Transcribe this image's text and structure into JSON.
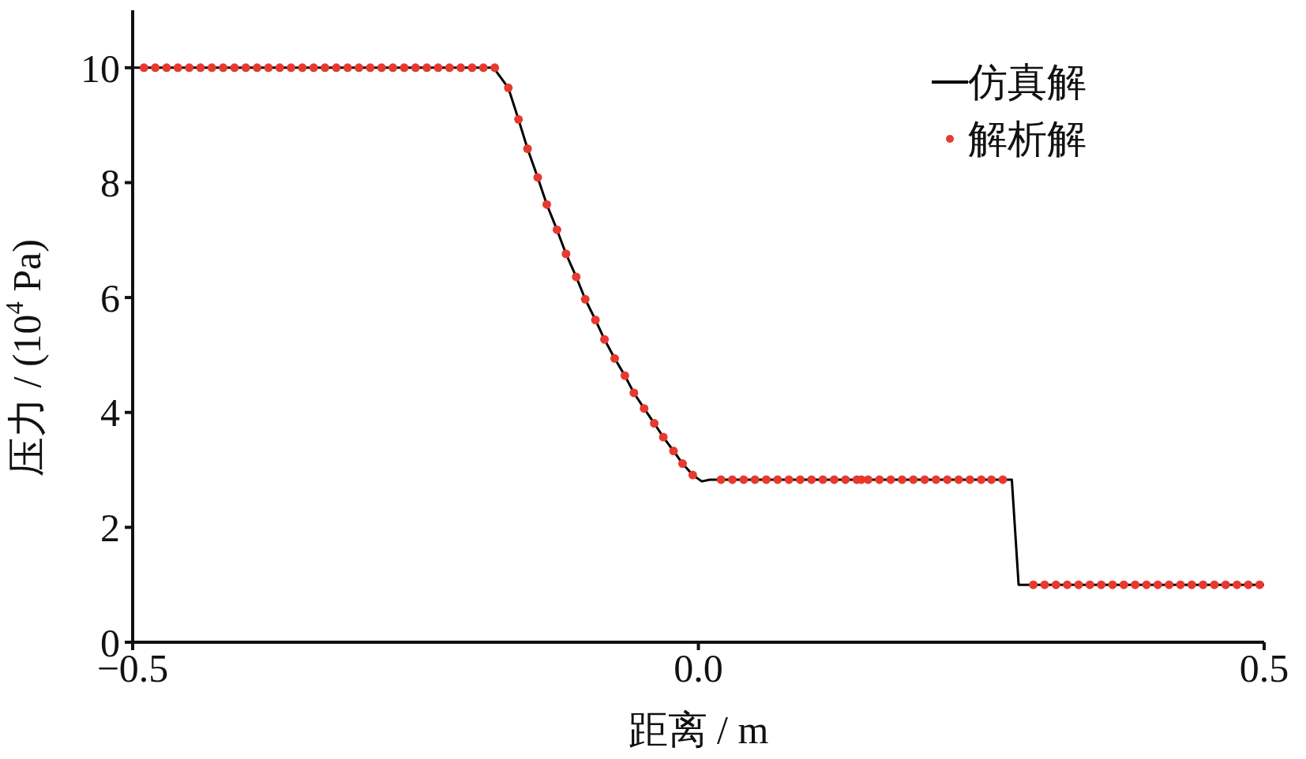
{
  "chart_data": {
    "type": "line",
    "xlabel": "距离 / m",
    "ylabel": "压力 / (10$^{4}$ Pa)",
    "xlim": [
      -0.5,
      0.5
    ],
    "ylim": [
      0,
      11
    ],
    "xticks": [
      {
        "value": -0.5,
        "label": "−0.5"
      },
      {
        "value": 0,
        "label": "0.0"
      },
      {
        "value": 0.5,
        "label": "0.5"
      }
    ],
    "yticks": [
      0,
      2,
      4,
      6,
      8,
      10
    ],
    "grid": false,
    "legend": "top right",
    "series": [
      {
        "name": "仿真解",
        "color": "#000000",
        "marker": "none",
        "line_style": "solid",
        "x": [
          -0.5,
          -0.181,
          -0.168,
          -0.159,
          -0.151,
          -0.142,
          -0.134,
          -0.125,
          -0.117,
          -0.108,
          -0.1,
          -0.091,
          -0.083,
          -0.074,
          -0.065,
          -0.057,
          -0.048,
          -0.039,
          -0.031,
          -0.022,
          -0.014,
          -0.005,
          0.003,
          0.01,
          0.277,
          0.283,
          0.5
        ],
        "values": [
          10,
          10,
          9.65,
          9.1,
          8.59,
          8.09,
          7.62,
          7.18,
          6.76,
          6.36,
          5.97,
          5.61,
          5.27,
          4.94,
          4.64,
          4.34,
          4.07,
          3.81,
          3.57,
          3.33,
          3.11,
          2.91,
          2.8,
          2.83,
          2.83,
          1.0,
          1.0
        ]
      },
      {
        "name": "解析解",
        "type": "scatter",
        "color": "#e8392f",
        "marker": "circle",
        "x": [
          -0.49,
          -0.48,
          -0.47,
          -0.46,
          -0.45,
          -0.44,
          -0.43,
          -0.42,
          -0.41,
          -0.4,
          -0.39,
          -0.38,
          -0.37,
          -0.36,
          -0.35,
          -0.34,
          -0.33,
          -0.32,
          -0.31,
          -0.3,
          -0.29,
          -0.28,
          -0.27,
          -0.26,
          -0.25,
          -0.24,
          -0.23,
          -0.22,
          -0.21,
          -0.2,
          -0.19,
          -0.18,
          -0.168,
          -0.159,
          -0.151,
          -0.142,
          -0.134,
          -0.125,
          -0.117,
          -0.108,
          -0.1,
          -0.091,
          -0.083,
          -0.074,
          -0.065,
          -0.057,
          -0.048,
          -0.039,
          -0.031,
          -0.022,
          -0.014,
          -0.005,
          0.02,
          0.03,
          0.04,
          0.05,
          0.06,
          0.07,
          0.08,
          0.09,
          0.1,
          0.11,
          0.12,
          0.13,
          0.14,
          0.144,
          0.15,
          0.16,
          0.17,
          0.18,
          0.19,
          0.2,
          0.21,
          0.22,
          0.23,
          0.24,
          0.25,
          0.259,
          0.269,
          0.296,
          0.306,
          0.316,
          0.326,
          0.336,
          0.346,
          0.356,
          0.366,
          0.376,
          0.386,
          0.396,
          0.406,
          0.416,
          0.426,
          0.436,
          0.446,
          0.456,
          0.466,
          0.476,
          0.486,
          0.496
        ],
        "values": [
          10,
          10,
          10,
          10,
          10,
          10,
          10,
          10,
          10,
          10,
          10,
          10,
          10,
          10,
          10,
          10,
          10,
          10,
          10,
          10,
          10,
          10,
          10,
          10,
          10,
          10,
          10,
          10,
          10,
          10,
          10,
          10,
          9.65,
          9.1,
          8.59,
          8.09,
          7.62,
          7.18,
          6.76,
          6.36,
          5.97,
          5.61,
          5.27,
          4.94,
          4.64,
          4.34,
          4.07,
          3.81,
          3.57,
          3.33,
          3.11,
          2.91,
          2.83,
          2.83,
          2.83,
          2.83,
          2.83,
          2.83,
          2.83,
          2.83,
          2.83,
          2.83,
          2.83,
          2.83,
          2.83,
          2.83,
          2.83,
          2.83,
          2.83,
          2.83,
          2.83,
          2.83,
          2.83,
          2.83,
          2.83,
          2.83,
          2.83,
          2.83,
          2.83,
          1.0,
          1.0,
          1.0,
          1.0,
          1.0,
          1.0,
          1.0,
          1.0,
          1.0,
          1.0,
          1.0,
          1.0,
          1.0,
          1.0,
          1.0,
          1.0,
          1.0,
          1.0,
          1.0,
          1.0,
          1.0
        ]
      }
    ]
  }
}
